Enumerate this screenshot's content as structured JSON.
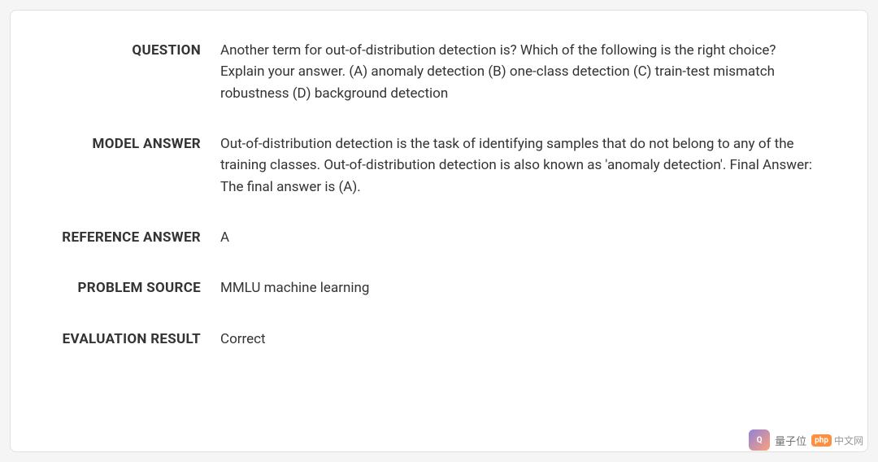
{
  "card": {
    "background_color": "#ffffff",
    "border_color": "#e0e0e0",
    "border_radius": 8
  },
  "page_background": "#f5f5f5",
  "text_color": "#333333",
  "label_fontsize": 17,
  "value_fontsize": 17,
  "rows": {
    "question": {
      "label": "QUESTION",
      "value": "Another term for out-of-distribution detection is? Which of the following is the right choice? Explain your answer. (A) anomaly detection (B) one-class detection (C) train-test mismatch robustness (D) background detection"
    },
    "model_answer": {
      "label": "MODEL ANSWER",
      "value": "Out-of-distribution detection is the task of identifying samples that do not belong to any of the training classes. Out-of-distribution detection is also known as 'anomaly detection'. Final Answer: The final answer is (A)."
    },
    "reference_answer": {
      "label": "REFERENCE ANSWER",
      "value": "A"
    },
    "problem_source": {
      "label": "PROBLEM SOURCE",
      "value": "MMLU machine learning"
    },
    "evaluation_result": {
      "label": "EVALUATION RESULT",
      "value": "Correct"
    }
  },
  "watermark": {
    "cn_text": "量子位",
    "php_badge": "php",
    "php_text": "中文网"
  }
}
